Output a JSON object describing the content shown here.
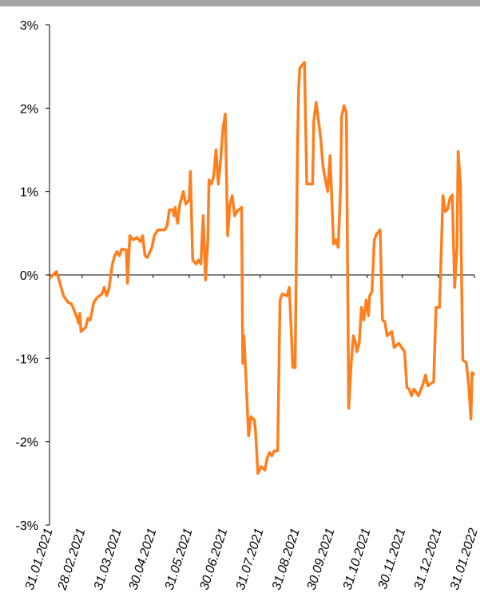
{
  "chart_data": {
    "type": "line",
    "x": [
      "31.01.2021",
      "06.02.2021",
      "09.02.2021",
      "12.02.2021",
      "16.02.2021",
      "19.02.2021",
      "23.02.2021",
      "25.02.2021",
      "26.02.2021",
      "27.02.2021",
      "03.03.2021",
      "05.03.2021",
      "07.03.2021",
      "10.03.2021",
      "13.03.2021",
      "17.03.2021",
      "19.03.2021",
      "21.03.2021",
      "23.03.2021",
      "26.03.2021",
      "28.03.2021",
      "30.03.2021",
      "01.04.2021",
      "03.04.2021",
      "07.04.2021",
      "08.04.2021",
      "10.04.2021",
      "13.04.2021",
      "16.04.2021",
      "19.04.2021",
      "21.04.2021",
      "23.04.2021",
      "25.04.2021",
      "29.04.2021",
      "01.05.2021",
      "04.05.2021",
      "10.05.2021",
      "12.05.2021",
      "14.05.2021",
      "17.05.2021",
      "18.05.2021",
      "19.05.2021",
      "21.05.2021",
      "23.05.2021",
      "26.05.2021",
      "28.05.2021",
      "31.05.2021",
      "01.06.2021",
      "03.06.2021",
      "06.06.2021",
      "08.06.2021",
      "10.06.2021",
      "12.06.2021",
      "14.06.2021",
      "16.06.2021",
      "17.06.2021",
      "19.06.2021",
      "21.06.2021",
      "23.06.2021",
      "25.06.2021",
      "27.06.2021",
      "29.06.2021",
      "01.07.2021",
      "03.07.2021",
      "05.07.2021",
      "07.07.2021",
      "09.07.2021",
      "11.07.2021",
      "15.07.2021",
      "16.07.2021",
      "17.07.2021",
      "19.07.2021",
      "21.07.2021",
      "23.07.2021",
      "26.07.2021",
      "27.07.2021",
      "29.07.2021",
      "01.08.2021",
      "04.08.2021",
      "06.08.2021",
      "08.08.2021",
      "10.08.2021",
      "12.08.2021",
      "15.08.2021",
      "17.08.2021",
      "19.08.2021",
      "23.08.2021",
      "25.08.2021",
      "28.08.2021",
      "30.08.2021",
      "01.09.2021",
      "02.09.2021",
      "03.09.2021",
      "07.09.2021",
      "09.09.2021",
      "14.09.2021",
      "15.09.2021",
      "17.09.2021",
      "19.09.2021",
      "21.09.2021",
      "23.09.2021",
      "25.09.2021",
      "27.09.2021",
      "29.09.2021",
      "02.10.2021",
      "04.10.2021",
      "06.10.2021",
      "08.10.2021",
      "09.10.2021",
      "11.10.2021",
      "13.10.2021",
      "15.10.2021",
      "17.10.2021",
      "19.10.2021",
      "21.10.2021",
      "22.10.2021",
      "24.10.2021",
      "26.10.2021",
      "28.10.2021",
      "30.10.2021",
      "01.11.2021",
      "02.11.2021",
      "04.11.2021",
      "06.11.2021",
      "08.11.2021",
      "11.11.2021",
      "13.11.2021",
      "15.11.2021",
      "17.11.2021",
      "21.11.2021",
      "23.11.2021",
      "27.11.2021",
      "02.12.2021",
      "04.12.2021",
      "06.12.2021",
      "08.12.2021",
      "10.12.2021",
      "14.12.2021",
      "18.12.2021",
      "20.12.2021",
      "22.12.2021",
      "27.12.2021",
      "29.12.2021",
      "01.01.2022",
      "04.01.2022",
      "06.01.2022",
      "08.01.2022",
      "10.01.2022",
      "12.01.2022",
      "14.01.2022",
      "16.01.2022",
      "17.01.2022",
      "19.01.2022",
      "20.01.2022",
      "21.01.2022",
      "24.01.2022",
      "26.01.2022",
      "28.01.2022",
      "29.01.2022",
      "31.01.2022"
    ],
    "series": [
      {
        "color": "#ff7f1e",
        "values": [
          -0.04,
          0.04,
          -0.1,
          -0.25,
          -0.33,
          -0.35,
          -0.49,
          -0.58,
          -0.46,
          -0.68,
          -0.63,
          -0.52,
          -0.54,
          -0.33,
          -0.27,
          -0.23,
          -0.15,
          -0.25,
          -0.17,
          0.13,
          0.23,
          0.28,
          0.23,
          0.31,
          0.3,
          -0.1,
          0.47,
          0.42,
          0.45,
          0.4,
          0.47,
          0.23,
          0.21,
          0.33,
          0.47,
          0.54,
          0.54,
          0.59,
          0.78,
          0.78,
          0.71,
          0.81,
          0.62,
          0.85,
          1.0,
          0.85,
          0.9,
          1.24,
          0.18,
          0.13,
          0.18,
          0.13,
          0.71,
          -0.06,
          0.42,
          1.14,
          1.09,
          1.18,
          1.5,
          1.09,
          1.38,
          1.76,
          1.93,
          0.47,
          0.85,
          0.95,
          0.71,
          0.76,
          0.81,
          -1.06,
          -0.73,
          -1.31,
          -1.93,
          -1.7,
          -1.74,
          -1.88,
          -2.38,
          -2.3,
          -2.34,
          -2.2,
          -2.13,
          -2.17,
          -2.11,
          -2.11,
          -0.3,
          -0.23,
          -0.25,
          -0.15,
          -1.11,
          -1.11,
          1.52,
          2.24,
          2.48,
          2.55,
          1.09,
          1.09,
          1.84,
          2.07,
          1.86,
          1.63,
          1.29,
          1.14,
          1.0,
          1.43,
          0.37,
          0.42,
          0.33,
          1.05,
          1.9,
          2.03,
          1.95,
          -1.6,
          -1.09,
          -0.73,
          -0.82,
          -0.92,
          -0.82,
          -0.39,
          -0.54,
          -0.3,
          -0.49,
          -0.25,
          -0.2,
          0.42,
          0.49,
          0.54,
          -0.54,
          -0.56,
          -0.73,
          -0.68,
          -0.87,
          -0.82,
          -0.92,
          -1.35,
          -1.37,
          -1.45,
          -1.37,
          -1.45,
          -1.3,
          -1.2,
          -1.33,
          -1.28,
          -0.39,
          -0.39,
          0.95,
          0.76,
          0.79,
          0.92,
          0.96,
          -0.15,
          0.33,
          1.48,
          1.09,
          -0.06,
          -1.02,
          -1.05,
          -1.3,
          -1.73,
          -1.17,
          -1.2
        ]
      }
    ],
    "xlim": [
      "31.01.2021",
      "31.01.2022"
    ],
    "xticks": [
      "31.01.2021",
      "28.02.2021",
      "31.03.2021",
      "30.04.2021",
      "31.05.2021",
      "30.06.2021",
      "31.07.2021",
      "31.08.2021",
      "30.09.2021",
      "31.10.2021",
      "30.11.2021",
      "31.12.2021",
      "31.01.2022"
    ],
    "ylim": [
      -3,
      3
    ],
    "yticks": [
      {
        "value": -3,
        "label": "-3%"
      },
      {
        "value": -2,
        "label": "-2%"
      },
      {
        "value": -1,
        "label": "-1%"
      },
      {
        "value": 0,
        "label": "0%"
      },
      {
        "value": 1,
        "label": "1%"
      },
      {
        "value": 2,
        "label": "2%"
      },
      {
        "value": 3,
        "label": "3%"
      }
    ]
  }
}
